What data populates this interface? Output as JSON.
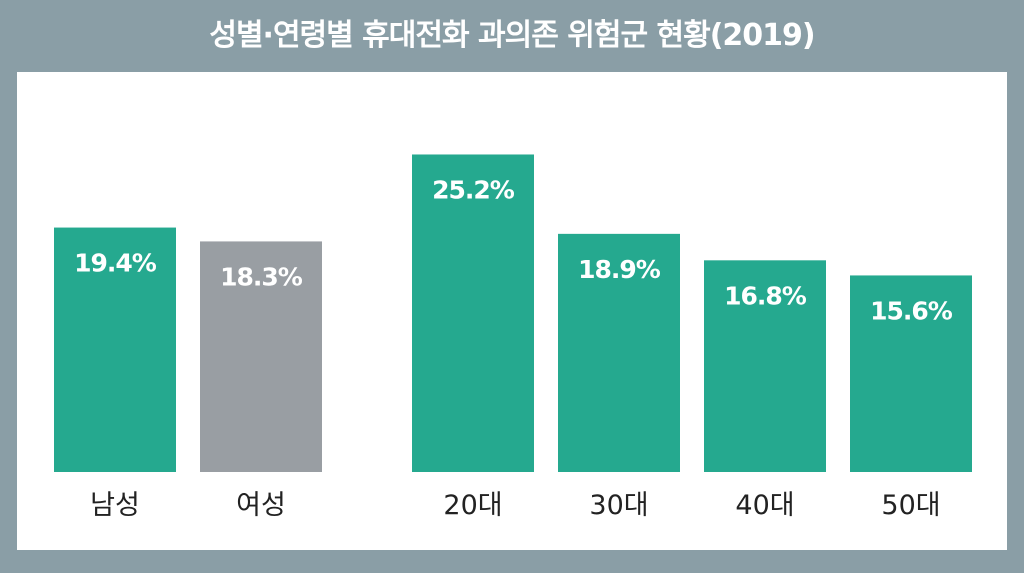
{
  "title": "성별·연령별 휴대전화 과의존 위험군 현황(2019)",
  "colors": {
    "teal": "#25a98f",
    "gray": "#999ea3",
    "frame": "#8a9ea6"
  },
  "chart_data": [
    {
      "type": "bar",
      "categories": [
        "남성",
        "여성"
      ],
      "values": [
        19.4,
        18.3
      ],
      "labels": [
        "19.4%",
        "18.3%"
      ],
      "bar_colors": [
        "#25a98f",
        "#999ea3"
      ],
      "ylim": [
        0,
        30
      ]
    },
    {
      "type": "bar",
      "categories": [
        "20대",
        "30대",
        "40대",
        "50대"
      ],
      "values": [
        25.2,
        18.9,
        16.8,
        15.6
      ],
      "labels": [
        "25.2%",
        "18.9%",
        "16.8%",
        "15.6%"
      ],
      "bar_colors": [
        "#25a98f",
        "#25a98f",
        "#25a98f",
        "#25a98f"
      ],
      "ylim": [
        0,
        30
      ]
    }
  ]
}
